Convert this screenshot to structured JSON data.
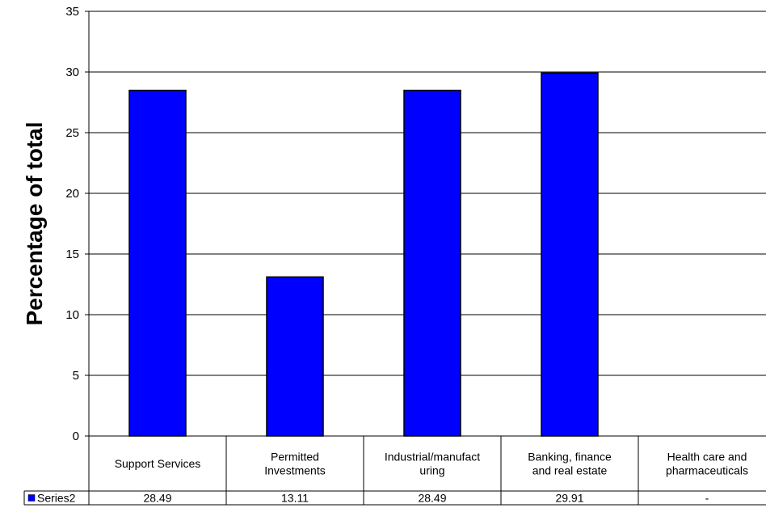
{
  "chart_data": {
    "type": "bar",
    "categories": [
      "Support Services",
      "Permitted Investments",
      "Industrial/manufacturing",
      "Banking, finance and real estate",
      "Health care and pharmaceuticals"
    ],
    "category_label_lines": [
      [
        "Support Services"
      ],
      [
        "Permitted",
        "Investments"
      ],
      [
        "Industrial/manufact",
        "uring"
      ],
      [
        "Banking, finance",
        "and real estate"
      ],
      [
        "Health care and",
        "pharmaceuticals"
      ]
    ],
    "series": [
      {
        "name": "Series2",
        "values": [
          28.49,
          13.11,
          28.49,
          29.91,
          null
        ],
        "table_labels": [
          "28.49",
          "13.11",
          "28.49",
          "29.91",
          "-"
        ],
        "color": "#0000FF"
      }
    ],
    "title": "",
    "xlabel": "",
    "ylabel": "Percentage of total",
    "ylim": [
      0,
      35
    ],
    "yticks": [
      0,
      5,
      10,
      15,
      20,
      25,
      30,
      35
    ],
    "grid": true,
    "legend": "data-table"
  }
}
